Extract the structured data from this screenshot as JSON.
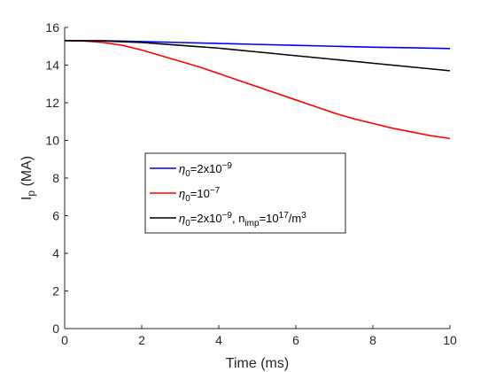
{
  "chart_data": {
    "type": "line",
    "title": "",
    "xlabel": "Time (ms)",
    "ylabel_main": "I",
    "ylabel_sub": "p",
    "ylabel_unit": " (MA)",
    "xlim": [
      0,
      10
    ],
    "ylim": [
      0,
      16
    ],
    "x_ticks": [
      "0",
      "2",
      "4",
      "6",
      "8",
      "10"
    ],
    "y_ticks": [
      "0",
      "2",
      "4",
      "6",
      "8",
      "10",
      "12",
      "14",
      "16"
    ],
    "grid": false,
    "legend_position": "center-left",
    "series": [
      {
        "legend": [
          {
            "t": "η",
            "s": "n"
          },
          {
            "t": "0",
            "s": "sub"
          },
          {
            "t": "=2x10",
            "s": "n"
          },
          {
            "t": "−9",
            "s": "sup"
          }
        ],
        "color": "#0000ff",
        "x": [
          0,
          1,
          2,
          3,
          4,
          5,
          6,
          7,
          8,
          9,
          10
        ],
        "y": [
          15.3,
          15.3,
          15.25,
          15.2,
          15.15,
          15.1,
          15.05,
          15.0,
          14.95,
          14.92,
          14.88
        ]
      },
      {
        "legend": [
          {
            "t": "η",
            "s": "n"
          },
          {
            "t": "0",
            "s": "sub"
          },
          {
            "t": "=10",
            "s": "n"
          },
          {
            "t": "−7",
            "s": "sup"
          }
        ],
        "color": "#ff0000",
        "x": [
          0,
          0.5,
          1,
          1.5,
          2,
          2.5,
          3,
          3.5,
          4,
          4.5,
          5,
          5.5,
          6,
          6.5,
          7,
          7.5,
          8,
          8.5,
          9,
          9.5,
          10
        ],
        "y": [
          15.3,
          15.28,
          15.2,
          15.05,
          14.8,
          14.5,
          14.2,
          13.9,
          13.55,
          13.2,
          12.85,
          12.5,
          12.15,
          11.8,
          11.45,
          11.15,
          10.9,
          10.65,
          10.45,
          10.25,
          10.1
        ]
      },
      {
        "legend": [
          {
            "t": "η",
            "s": "n"
          },
          {
            "t": "0",
            "s": "sub"
          },
          {
            "t": "=2x10",
            "s": "n"
          },
          {
            "t": "−9",
            "s": "sup"
          },
          {
            "t": ", n",
            "s": "n"
          },
          {
            "t": "imp",
            "s": "sub"
          },
          {
            "t": "=10",
            "s": "n"
          },
          {
            "t": "17",
            "s": "sup"
          },
          {
            "t": "/m",
            "s": "n"
          },
          {
            "t": "3",
            "s": "sup"
          }
        ],
        "color": "#000000",
        "x": [
          0,
          1,
          2,
          3,
          4,
          5,
          6,
          7,
          8,
          9,
          10
        ],
        "y": [
          15.3,
          15.28,
          15.2,
          15.05,
          14.9,
          14.7,
          14.5,
          14.3,
          14.1,
          13.9,
          13.7
        ]
      }
    ]
  }
}
